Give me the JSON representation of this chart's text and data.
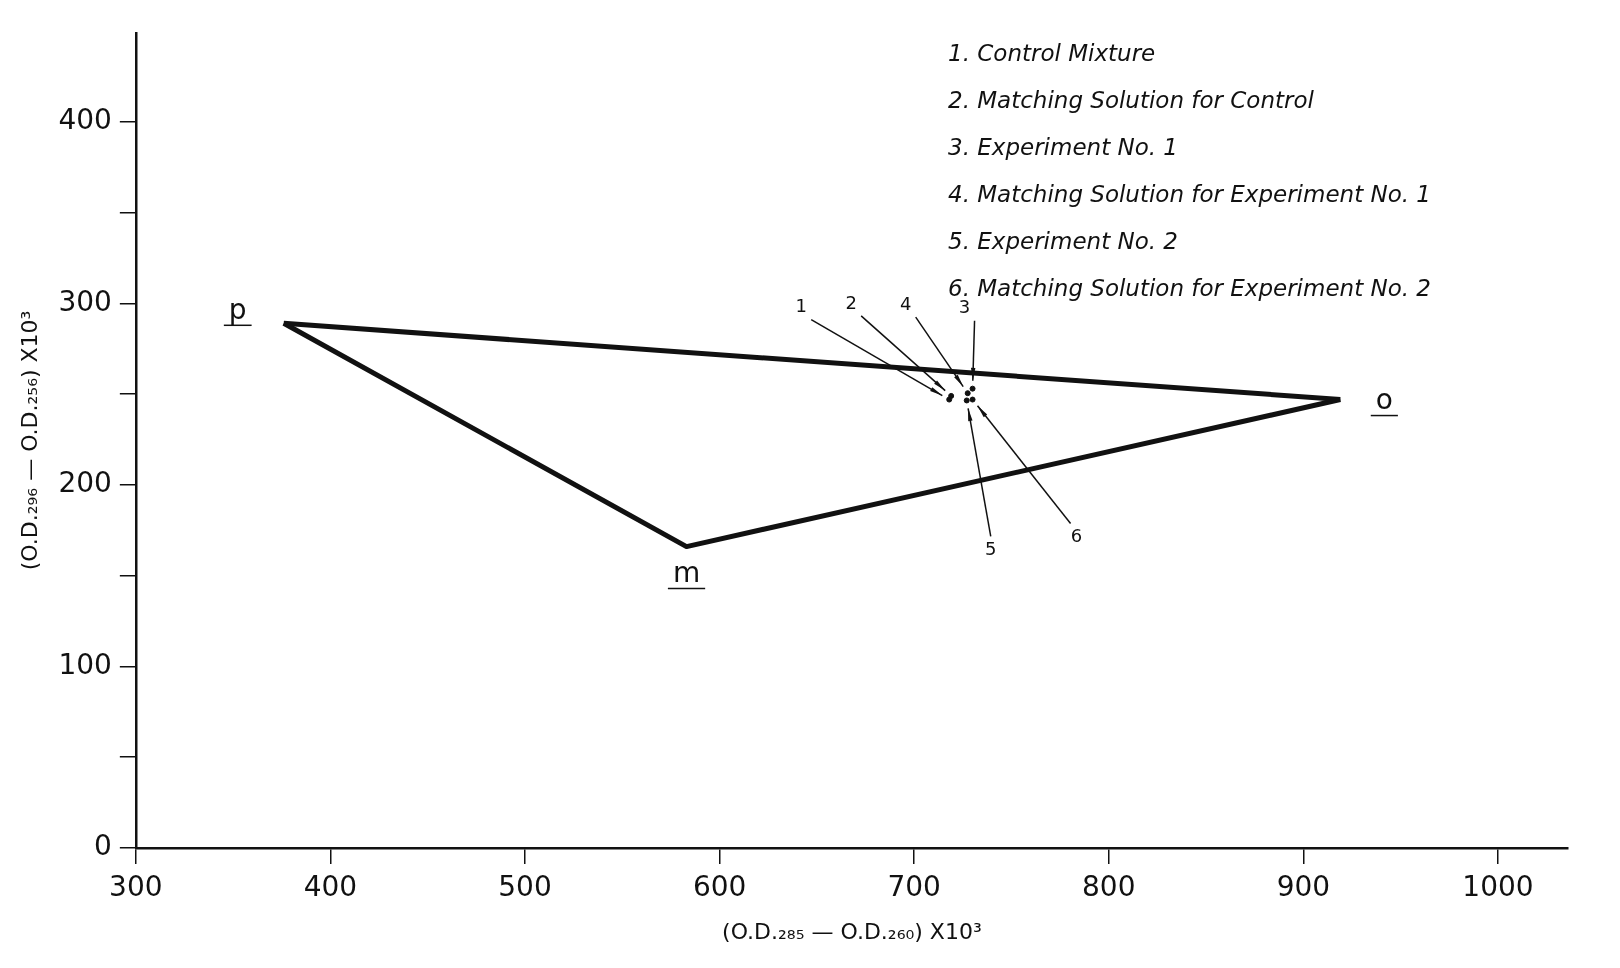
{
  "chart_data": {
    "type": "scatter",
    "xlabel": "(O.D.₂₈₅ — O.D.₂₆₀) X10³",
    "ylabel": "(O.D.₂₉₆ — O.D.₂₅₆) X10³",
    "xlim": [
      300,
      1036
    ],
    "xticks": [
      300,
      400,
      500,
      600,
      700,
      800,
      900,
      1000
    ],
    "ylim": [
      0,
      449
    ],
    "yticks": [
      0,
      {
        "value": 50,
        "label": null
      },
      100,
      {
        "value": 150,
        "label": null
      },
      200,
      {
        "value": 250,
        "label": null
      },
      300,
      {
        "value": 350,
        "label": null
      },
      400
    ],
    "grid": false,
    "legend": false,
    "series": [
      {
        "type": "line",
        "color": "#111111",
        "x": [
          376,
          919
        ],
        "values": [
          289,
          247
        ],
        "marker": "none",
        "line_style": "solid"
      },
      {
        "type": "line",
        "color": "#111111",
        "x": [
          376,
          583,
          919
        ],
        "values": [
          289,
          166,
          247
        ],
        "marker": "none",
        "line_style": "solid"
      },
      {
        "type": "scatter",
        "color": "#111111",
        "x": [
          718,
          719,
          730,
          727.5,
          727,
          730
        ],
        "values": [
          247,
          249,
          253,
          250.5,
          246.5,
          247
        ],
        "marker": "circle"
      }
    ],
    "annotations": [
      "1. Control Mixture",
      "2. Matching Solution for Control",
      "3. Experiment No. 1",
      "4. Matching Solution for Experiment No. 1",
      "5. Experiment No. 2",
      "6. Matching Solution for Experiment No. 2",
      {
        "text": "1",
        "x": 718,
        "y": 247
      },
      {
        "text": "2",
        "x": 719,
        "y": 249
      },
      {
        "text": "3",
        "x": 730,
        "y": 253
      },
      {
        "text": "4",
        "x": 727.5,
        "y": 250.5
      },
      {
        "text": "5",
        "x": 727,
        "y": 246.5
      },
      {
        "text": "6",
        "x": 730,
        "y": 247
      },
      {
        "text": "p",
        "x": 376,
        "y": 289
      },
      {
        "text": "m",
        "x": 583,
        "y": 166
      },
      {
        "text": "o",
        "x": 919,
        "y": 247
      }
    ]
  }
}
